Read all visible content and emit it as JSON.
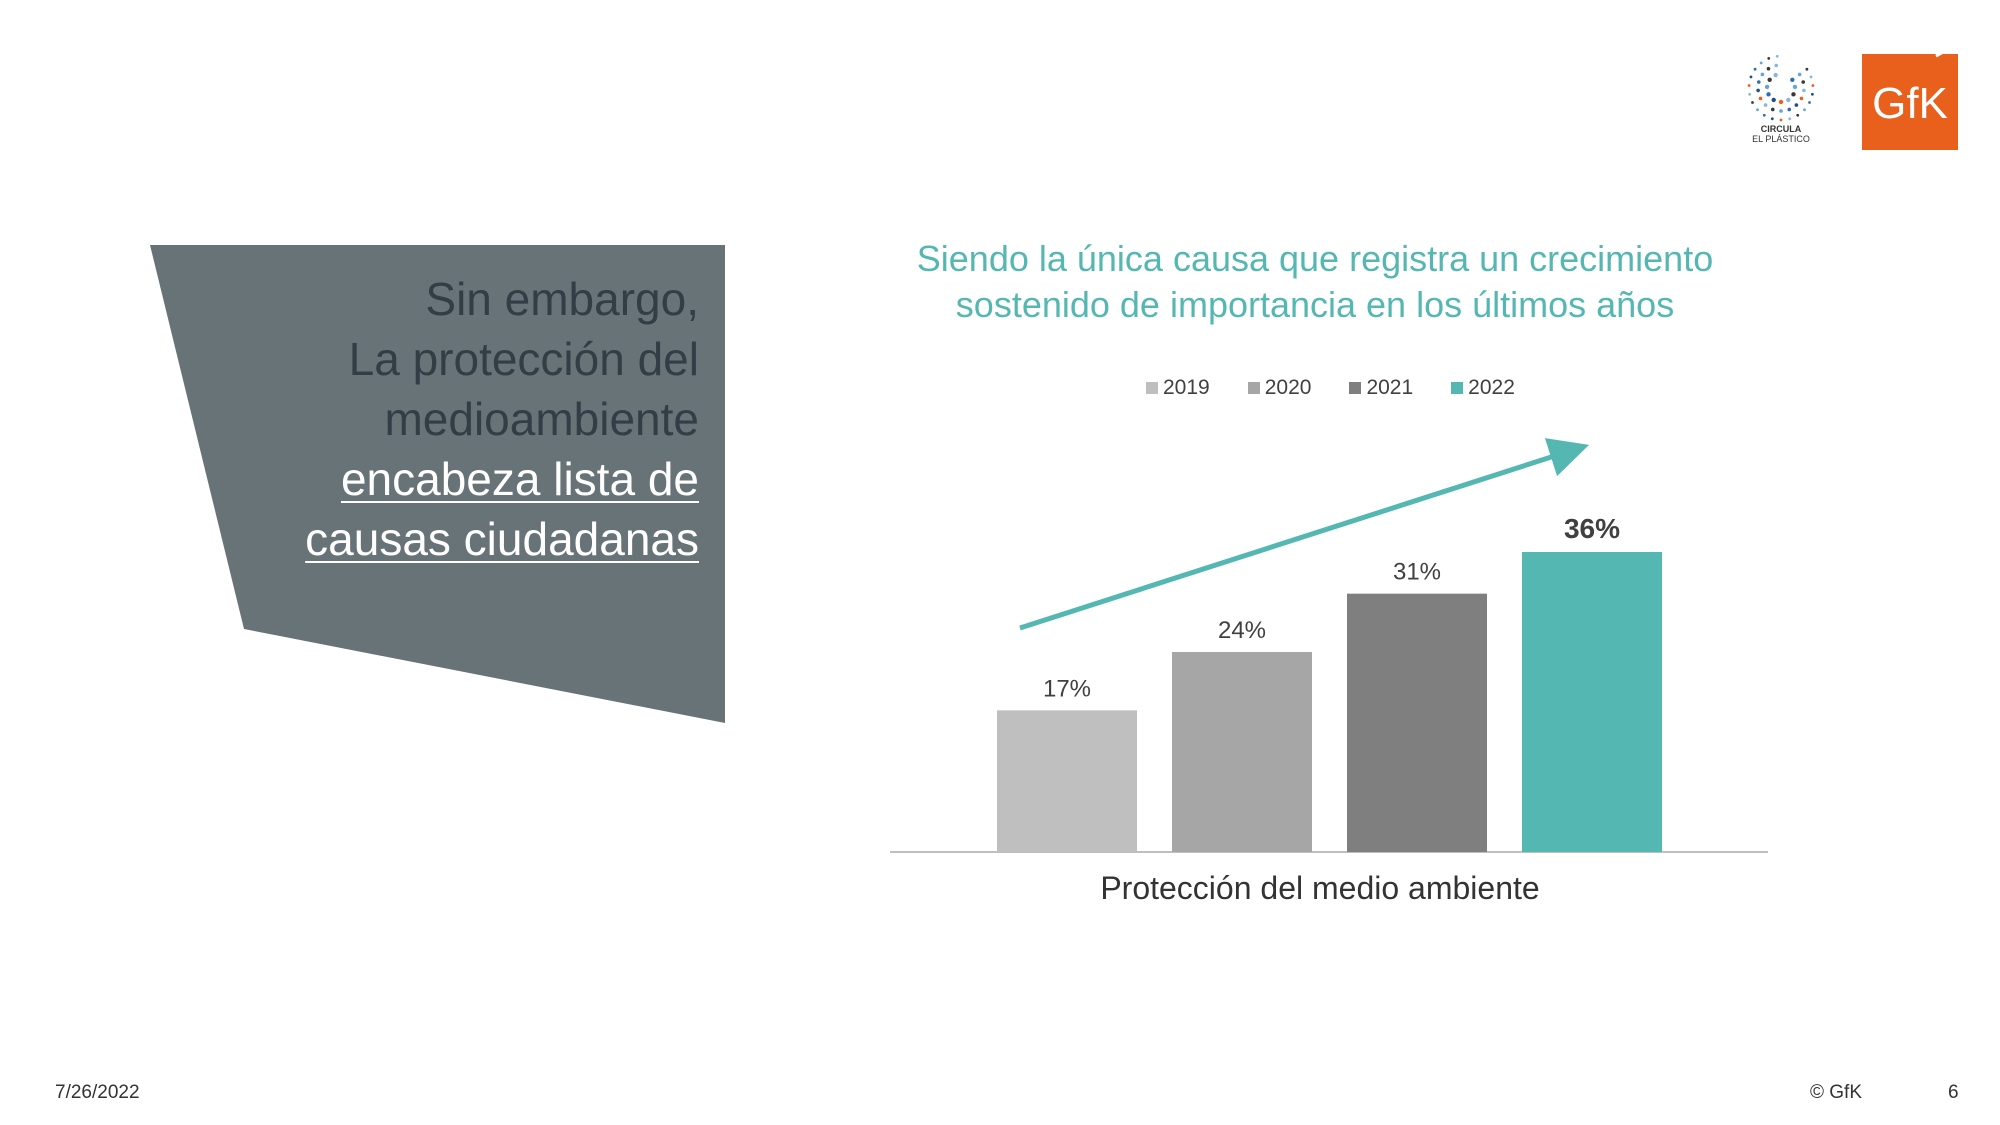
{
  "logos": {
    "circula_line1": "CIRCULA",
    "circula_line2": "EL PLÁSTICO",
    "gfk": "GfK",
    "gfk_color": "#e8601c"
  },
  "panel": {
    "line1": "Sin embargo,",
    "line2": "La protección del",
    "line3": "medioambiente",
    "highlight1": "encabeza lista de",
    "highlight2": "causas ciudadanas",
    "bg_color": "#687378"
  },
  "chart_data": {
    "type": "bar",
    "title_line1": "Siendo la única causa que registra un crecimiento",
    "title_line2": "sostenido de importancia en los últimos años",
    "categories": [
      "Protección del medio ambiente"
    ],
    "series": [
      {
        "name": "2019",
        "values": [
          17
        ],
        "label": "17%",
        "color": "#bfbfbf"
      },
      {
        "name": "2020",
        "values": [
          24
        ],
        "label": "24%",
        "color": "#a6a6a6"
      },
      {
        "name": "2021",
        "values": [
          31
        ],
        "label": "31%",
        "color": "#7f7f7f"
      },
      {
        "name": "2022",
        "values": [
          36
        ],
        "label": "36%",
        "color": "#55b7b2"
      }
    ],
    "ylim": [
      0,
      40
    ],
    "legend_position": "top",
    "grid": false,
    "trend_arrow_color": "#55b7b2"
  },
  "footer": {
    "date": "7/26/2022",
    "copyright": "© GfK",
    "page": "6"
  }
}
